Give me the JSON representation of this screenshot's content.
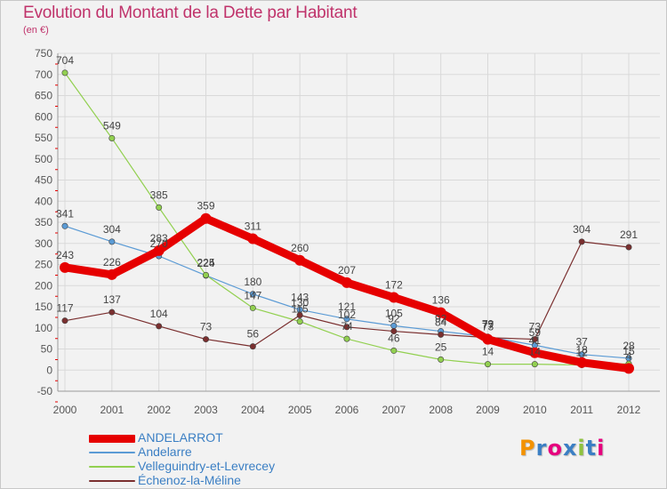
{
  "header": {
    "title": "Evolution du Montant de la Dette par Habitant",
    "subtitle": "(en €)"
  },
  "brand": {
    "text": "Proxiti",
    "colors": [
      "#f39200",
      "#3b7fc4",
      "#e6007e",
      "#3b7fc4",
      "#8fc23e",
      "#3b7fc4",
      "#e6007e"
    ]
  },
  "chart_data": {
    "type": "line",
    "title": "Evolution du Montant de la Dette par Habitant",
    "subtitle": "(en €)",
    "categories": [
      "2000",
      "2001",
      "2002",
      "2003",
      "2004",
      "2005",
      "2006",
      "2007",
      "2008",
      "2009",
      "2010",
      "2011",
      "2012"
    ],
    "ylim": [
      -50,
      750
    ],
    "yticks": [
      -50,
      0,
      50,
      100,
      150,
      200,
      250,
      300,
      350,
      400,
      450,
      500,
      550,
      600,
      650,
      700,
      750
    ],
    "grid": true,
    "legend_position": "bottom-left",
    "series": [
      {
        "name": "ANDELARROT",
        "color": "#e60000",
        "values": [
          243,
          226,
          283,
          359,
          311,
          260,
          207,
          172,
          136,
          73,
          41,
          18,
          4
        ],
        "labels": [
          "243",
          "226",
          "283",
          "359",
          "311",
          "260",
          "207",
          "172",
          "136",
          "73",
          "41",
          "18",
          "4"
        ]
      },
      {
        "name": "Andelarre",
        "color": "#5b9bd5",
        "values": [
          341,
          304,
          270,
          224,
          180,
          143,
          121,
          105,
          92,
          79,
          59,
          37,
          28
        ],
        "labels": [
          "341",
          "304",
          "270",
          "224",
          "180",
          "143",
          "121",
          "105",
          "92",
          "79",
          "59",
          "37",
          "28"
        ]
      },
      {
        "name": "Velleguindry-et-Levrecey",
        "color": "#92d050",
        "values": [
          704,
          549,
          385,
          225,
          147,
          115,
          74,
          46,
          25,
          14,
          14,
          12,
          15
        ],
        "labels": [
          "704",
          "549",
          "385",
          "225",
          "147",
          "115",
          "74",
          "46",
          "25",
          "14",
          "14",
          "12",
          "15"
        ]
      },
      {
        "name": "Échenoz-la-Méline",
        "color": "#7a2f2f",
        "values": [
          117,
          137,
          104,
          73,
          56,
          130,
          102,
          92,
          84,
          77,
          73,
          304,
          291
        ],
        "labels": [
          "117",
          "137",
          "104",
          "73",
          "56",
          "130",
          "102",
          "92",
          "84",
          "77",
          "73",
          "304",
          "291"
        ]
      }
    ]
  }
}
